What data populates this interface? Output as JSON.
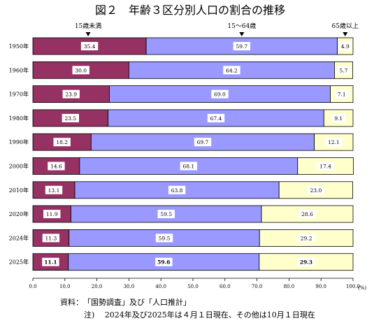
{
  "chart_data": {
    "type": "bar",
    "orientation": "horizontal",
    "stacked": true,
    "title": "図２　年齢３区分別人口の割合の推移",
    "categories": [
      "1950年",
      "1960年",
      "1970年",
      "1980年",
      "1990年",
      "2000年",
      "2010年",
      "2020年",
      "2024年",
      "2025年"
    ],
    "series": [
      {
        "name": "15歳未満",
        "color": "#953163",
        "values": [
          35.4,
          30.0,
          23.9,
          23.5,
          18.2,
          14.6,
          13.1,
          11.9,
          11.3,
          11.1
        ]
      },
      {
        "name": "15～64歳",
        "color": "#9999ff",
        "values": [
          59.7,
          64.2,
          69.0,
          67.4,
          69.7,
          68.1,
          63.8,
          59.5,
          59.5,
          59.6
        ]
      },
      {
        "name": "65歳以上",
        "color": "#ffffcc",
        "values": [
          4.9,
          5.7,
          7.1,
          9.1,
          12.1,
          17.4,
          23.0,
          28.6,
          29.2,
          29.3
        ]
      }
    ],
    "xlim": [
      0,
      100
    ],
    "xticks": [
      "0.0",
      "10.0",
      "20.0",
      "30.0",
      "40.0",
      "50.0",
      "60.0",
      "70.0",
      "80.0",
      "90.0",
      "100.0"
    ],
    "xunit": "(%)",
    "grid": false,
    "bold_category": "2025年"
  },
  "notes": {
    "source": "資料：　「国勢調査」及び「人口推計」",
    "footnote": "注)　 2024年及び2025年は４月１日現在、その他は10月１日現在"
  }
}
